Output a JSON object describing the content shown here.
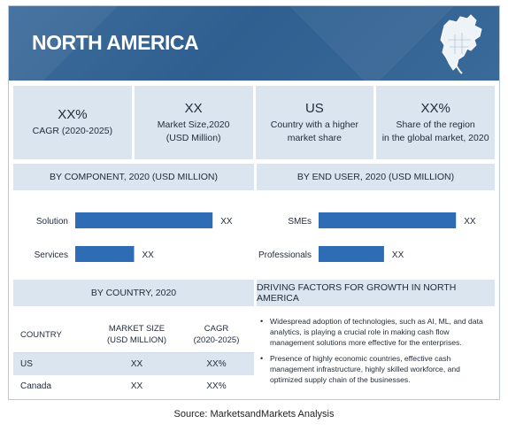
{
  "header": {
    "title": "NORTH AMERICA"
  },
  "kpis": [
    {
      "value": "XX%",
      "label": "CAGR (2020-2025)"
    },
    {
      "value": "XX",
      "label": "Market Size,2020\n(USD Million)"
    },
    {
      "value": "US",
      "label": "Country with a higher\nmarket share"
    },
    {
      "value": "XX%",
      "label": "Share of the region\nin the global market, 2020"
    }
  ],
  "sections": {
    "by_component": "BY COMPONENT, 2020 (USD MILLION)",
    "by_end_user": "BY END USER, 2020 (USD MILLION)",
    "by_country": "BY COUNTRY, 2020",
    "drivers": "DRIVING FACTORS FOR GROWTH IN NORTH AMERICA"
  },
  "chart_data": [
    {
      "type": "bar",
      "orientation": "horizontal",
      "title": "BY COMPONENT, 2020 (USD MILLION)",
      "categories": [
        "Solution",
        "Services"
      ],
      "values": [
        2.1,
        0.9
      ],
      "value_labels": [
        "XX",
        "XX"
      ],
      "color": "#2e6db5"
    },
    {
      "type": "bar",
      "orientation": "horizontal",
      "title": "BY END USER, 2020 (USD MILLION)",
      "categories": [
        "SMEs",
        "Professionals"
      ],
      "values": [
        2.1,
        1.0
      ],
      "value_labels": [
        "XX",
        "XX"
      ],
      "color": "#2e6db5"
    }
  ],
  "country_table": {
    "headers": [
      "COUNTRY",
      "MARKET SIZE\n(USD MILLION)",
      "CAGR\n(2020-2025)"
    ],
    "rows": [
      [
        "US",
        "XX",
        "XX%"
      ],
      [
        "Canada",
        "XX",
        "XX%"
      ]
    ]
  },
  "drivers": [
    "Widespread adoption of technologies, such as AI, ML, and data analytics, is playing a crucial role in making cash flow management solutions more effective for the enterprises.",
    "Presence of highly economic countries, effective cash management infrastructure, highly skilled workforce, and optimized supply chain of the businesses."
  ],
  "source": "Source: MarketsandMarkets Analysis",
  "colors": {
    "header_bg": "#3a6a99",
    "panel_bg": "#dbe5ef",
    "bar": "#2e6db5"
  }
}
